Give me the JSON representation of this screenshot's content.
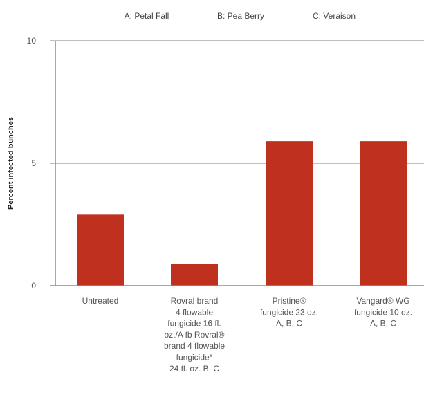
{
  "chart_data": {
    "type": "bar",
    "legend": [
      "A: Petal Fall",
      "B: Pea Berry",
      "C: Veraison"
    ],
    "ylabel": "Percent infected bunches",
    "xlabel": "",
    "ylim": [
      0,
      10
    ],
    "yticks": [
      "0",
      "5",
      "10"
    ],
    "categories": [
      [
        "Untreated"
      ],
      [
        "Rovral brand",
        "4 flowable",
        "fungicide 16 fl.",
        "oz./A fb Rovral®",
        "brand 4 flowable",
        "fungicide*",
        "24 fl. oz. B, C"
      ],
      [
        "Pristine®",
        "fungicide 23 oz.",
        "A, B, C"
      ],
      [
        "Vangard® WG",
        "fungicide 10 oz.",
        "A, B, C"
      ]
    ],
    "values": [
      2.9,
      0.9,
      5.9,
      5.9
    ],
    "grid": "horizontal",
    "colors": {
      "bar": "#C0301F",
      "axis": "#8c8c8c",
      "grid": "#9a9a9a"
    }
  }
}
